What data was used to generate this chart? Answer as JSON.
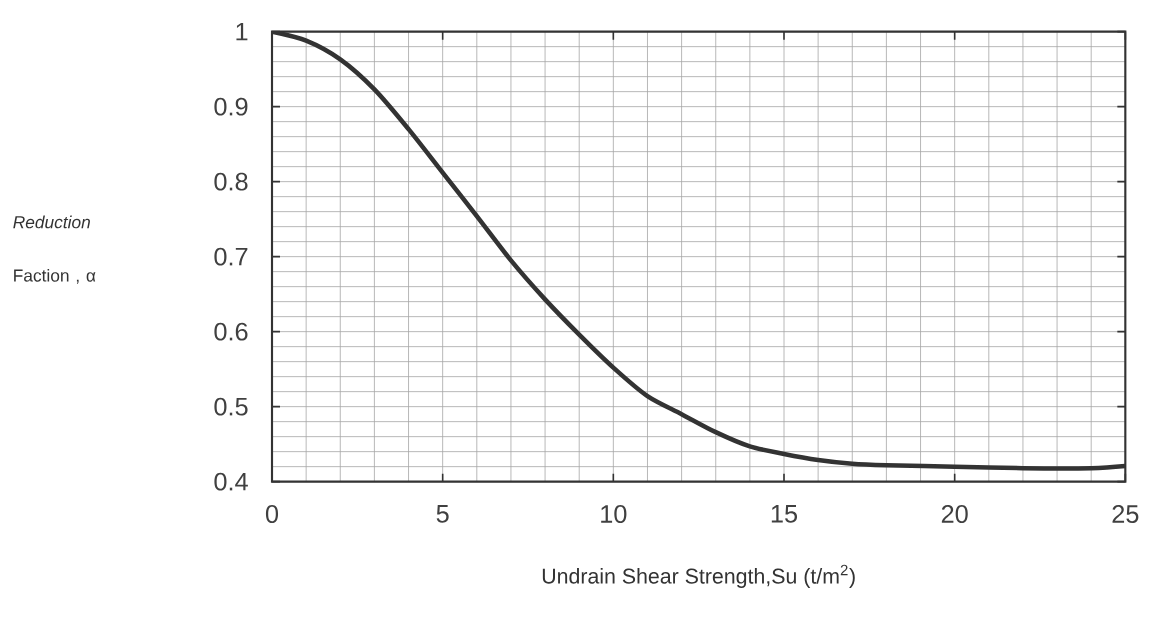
{
  "chart_data": {
    "type": "line",
    "xlabel": "Undrain Shear Strength,Su (t/m$^{2}$)",
    "ylabel": "*Reduction* Faction , α",
    "x": [
      0,
      1,
      2,
      3,
      4,
      5,
      6,
      7,
      8,
      9,
      10,
      11,
      12,
      13,
      14,
      15,
      16,
      17,
      18,
      20,
      22,
      24,
      25
    ],
    "series": [
      {
        "color": "#333333",
        "values": [
          1.0,
          0.988,
          0.963,
          0.923,
          0.87,
          0.812,
          0.754,
          0.695,
          0.643,
          0.596,
          0.552,
          0.514,
          0.49,
          0.466,
          0.447,
          0.437,
          0.429,
          0.424,
          0.422,
          0.42,
          0.418,
          0.418,
          0.421
        ]
      }
    ],
    "xlim": [
      0,
      25
    ],
    "ylim": [
      0.4,
      1
    ],
    "xticks": [
      0,
      5,
      10,
      15,
      20,
      25
    ],
    "yticks": [
      0.4,
      0.5,
      0.6,
      0.7,
      0.8,
      0.9,
      1
    ],
    "grid": true,
    "marker": "none",
    "line_style": "solid"
  }
}
